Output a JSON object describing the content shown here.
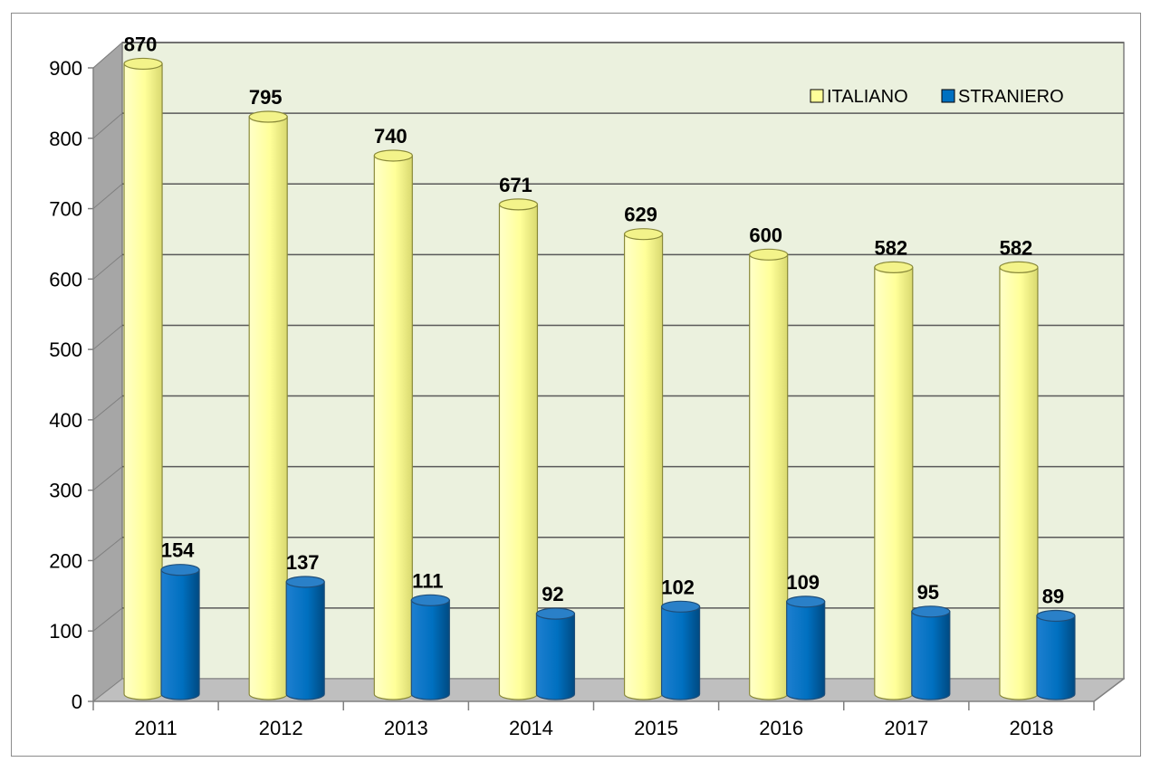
{
  "chart_data": {
    "type": "bar",
    "categories": [
      "2011",
      "2012",
      "2013",
      "2014",
      "2015",
      "2016",
      "2017",
      "2018"
    ],
    "series": [
      {
        "name": "ITALIANO",
        "values": [
          870,
          795,
          740,
          671,
          629,
          600,
          582,
          582
        ],
        "color": "#FFFF99"
      },
      {
        "name": "STRANIERO",
        "values": [
          154,
          137,
          111,
          92,
          102,
          109,
          95,
          89
        ],
        "color": "#0070C0"
      }
    ],
    "ylim": [
      0,
      900
    ],
    "yticks": [
      "0",
      "100",
      "200",
      "300",
      "400",
      "500",
      "600",
      "700",
      "800",
      "900"
    ],
    "grid": true,
    "legend_position": "top-right",
    "style": "3d-cylinder",
    "wall_color": "#EBF1DE",
    "floor_color": "#BFBFBF"
  }
}
